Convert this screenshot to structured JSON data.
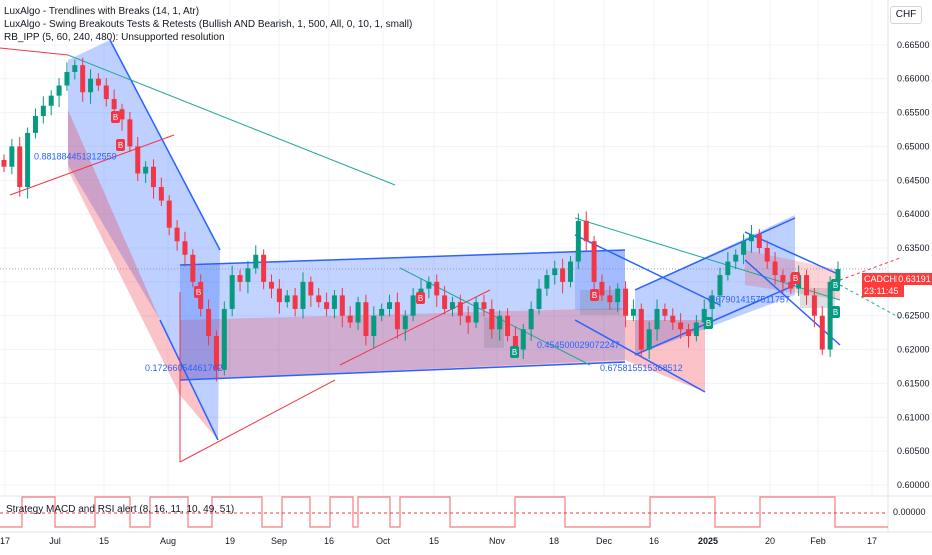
{
  "legend": {
    "line1": "LuxAlgo - Trendlines with Breaks (14, 1, Atr)",
    "line2": "LuxAlgo - Swing Breakouts Tests & Retests (Bullish AND Bearish, 1, 500, All, 0, 10, 1, small)",
    "line3": "RB_IPP (5, 60, 240, 480): Unsupported resolution",
    "indicator": "Strategy MACD and RSI alert (8, 16, 11, 10, 49, 51)"
  },
  "currency": "CHF",
  "last_price": {
    "symbol": "CADCHF",
    "value": "0.63191",
    "countdown": "23:11:45"
  },
  "colors": {
    "up": "#089981",
    "down": "#f23645",
    "blue": "#2962ff",
    "teal": "#26a69a",
    "red": "#ff5252"
  },
  "chart_data": {
    "type": "candlestick",
    "symbol": "CADCHF",
    "ylim": [
      0.6,
      0.67
    ],
    "y_ticks": [
      "0.66500",
      "0.66000",
      "0.65500",
      "0.65000",
      "0.64500",
      "0.64000",
      "0.63500",
      "0.63000",
      "0.62500",
      "0.62000",
      "0.61500",
      "0.61000",
      "0.60500",
      "0.60000"
    ],
    "x_ticks": [
      "17",
      "Jul",
      "15",
      "Aug",
      "19",
      "Sep",
      "16",
      "Oct",
      "15",
      "Nov",
      "18",
      "Dec",
      "16",
      "2025",
      "20",
      "Feb",
      "17"
    ],
    "level_labels": [
      {
        "text": "0.881884451312559",
        "price": 0.6485
      },
      {
        "text": "0.17266054461762",
        "price": 0.6173
      },
      {
        "text": "0.454500029072247",
        "price": 0.6207
      },
      {
        "text": "0.675815515368512",
        "price": 0.6173
      },
      {
        "text": "0.679014157511757",
        "price": 0.6274
      }
    ],
    "pattern_markers": [
      "B",
      "B",
      "B",
      "B",
      "B",
      "B",
      "B",
      "B",
      "B",
      "B"
    ],
    "closes": [
      0.647,
      0.65,
      0.644,
      0.652,
      0.6545,
      0.656,
      0.6575,
      0.659,
      0.661,
      0.662,
      0.658,
      0.66,
      0.659,
      0.657,
      0.6555,
      0.654,
      0.65,
      0.646,
      0.647,
      0.644,
      0.642,
      0.638,
      0.636,
      0.634,
      0.63,
      0.626,
      0.622,
      0.617,
      0.626,
      0.631,
      0.63,
      0.632,
      0.634,
      0.63,
      0.629,
      0.627,
      0.628,
      0.626,
      0.63,
      0.628,
      0.627,
      0.626,
      0.628,
      0.625,
      0.624,
      0.627,
      0.622,
      0.625,
      0.626,
      0.627,
      0.623,
      0.625,
      0.628,
      0.629,
      0.63,
      0.628,
      0.626,
      0.627,
      0.625,
      0.624,
      0.627,
      0.626,
      0.623,
      0.625,
      0.622,
      0.62,
      0.623,
      0.626,
      0.629,
      0.631,
      0.632,
      0.63,
      0.633,
      0.639,
      0.636,
      0.63,
      0.628,
      0.627,
      0.629,
      0.625,
      0.626,
      0.62,
      0.623,
      0.626,
      0.625,
      0.624,
      0.623,
      0.622,
      0.624,
      0.626,
      0.628,
      0.631,
      0.633,
      0.634,
      0.636,
      0.637,
      0.635,
      0.633,
      0.631,
      0.63,
      0.629,
      0.631,
      0.628,
      0.625,
      0.62,
      0.63,
      0.6319
    ]
  }
}
